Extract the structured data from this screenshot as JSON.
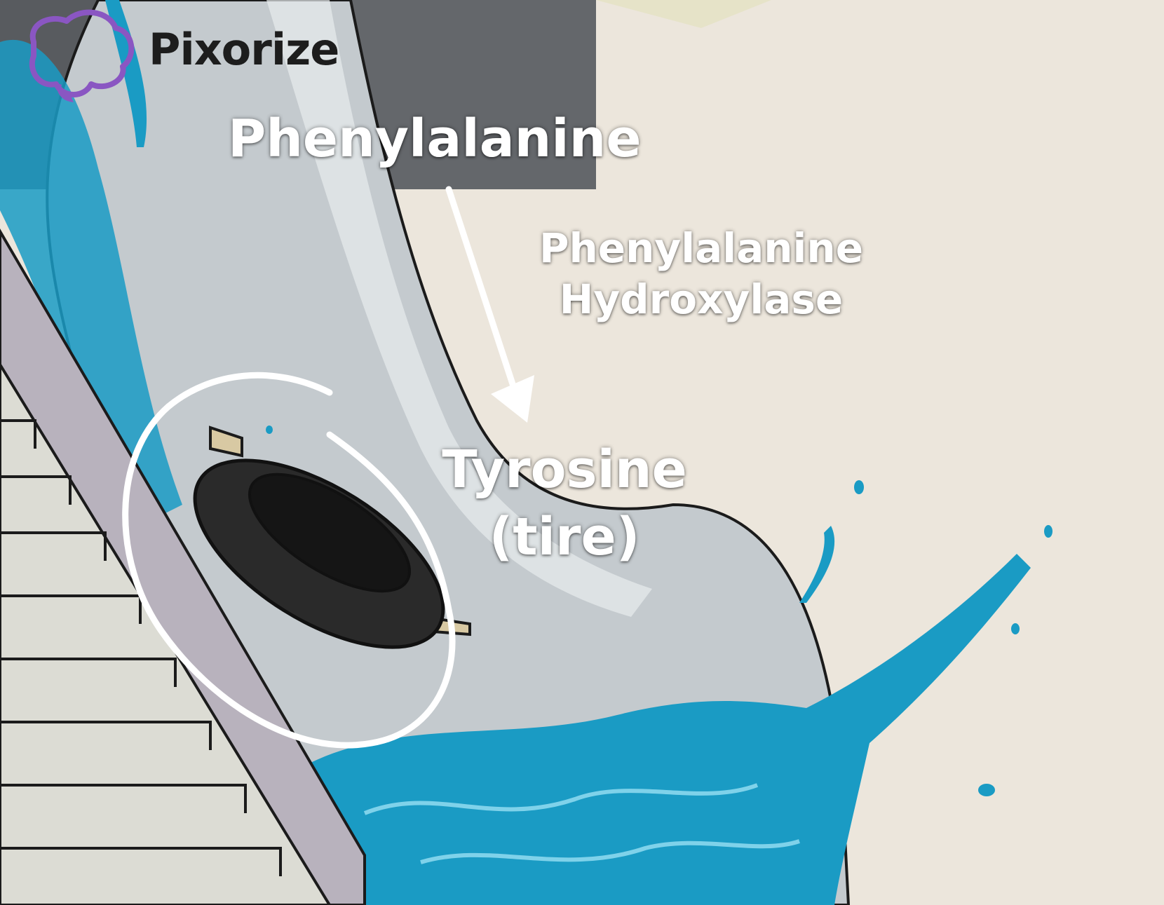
{
  "logo": {
    "text": "Pixorize",
    "icon": "brain-icon"
  },
  "pathway": {
    "substrate": "Phenylalanine",
    "enzyme_line1": "Phenylalanine",
    "enzyme_line2": "Hydroxylase",
    "product": "Tyrosine",
    "mnemonic": "(tire)"
  },
  "colors": {
    "background": "#ece6dc",
    "water": "#1a9bc4",
    "slide": "#c9ced2",
    "wall": "#5f6368",
    "stairs": "#dcdcd4",
    "tire": "#2a2a2a",
    "logo_accent": "#8a56c2",
    "annotation": "#ffffff"
  }
}
